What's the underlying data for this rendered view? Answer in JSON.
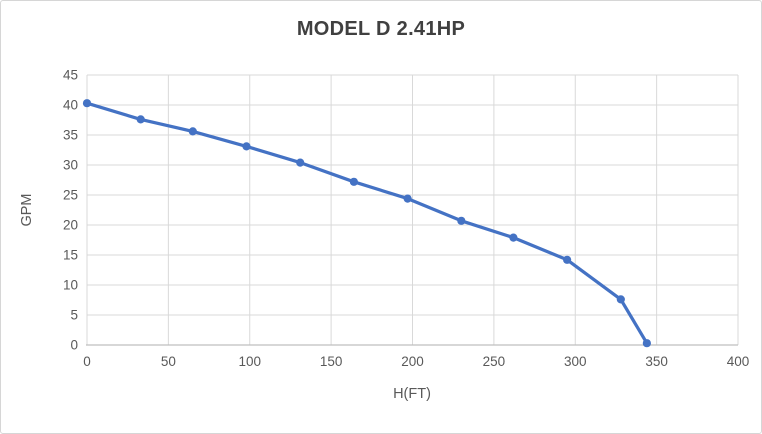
{
  "window": {
    "background": "#ffffff",
    "border_color": "#d6d6d6"
  },
  "chart_data": {
    "type": "line",
    "title": "MODEL D 2.41HP",
    "xlabel": "H(FT)",
    "ylabel": "GPM",
    "x": [
      0,
      33,
      65,
      98,
      131,
      164,
      197,
      230,
      262,
      295,
      328,
      344
    ],
    "y": [
      40.3,
      37.6,
      35.6,
      33.1,
      30.4,
      27.2,
      24.4,
      20.7,
      17.9,
      14.2,
      7.6,
      0.3
    ],
    "xlim": [
      0,
      400
    ],
    "ylim": [
      0,
      45
    ],
    "x_ticks": [
      0,
      50,
      100,
      150,
      200,
      250,
      300,
      350,
      400
    ],
    "y_ticks": [
      0,
      5,
      10,
      15,
      20,
      25,
      30,
      35,
      40,
      45
    ],
    "grid": true,
    "legend": "none",
    "line_color": "#4472C4",
    "marker": "circle",
    "gridline_color": "#D9D9D9",
    "axis_line_color": "#BFBFBF",
    "tick_label_color": "#595959",
    "title_color": "#404040"
  }
}
